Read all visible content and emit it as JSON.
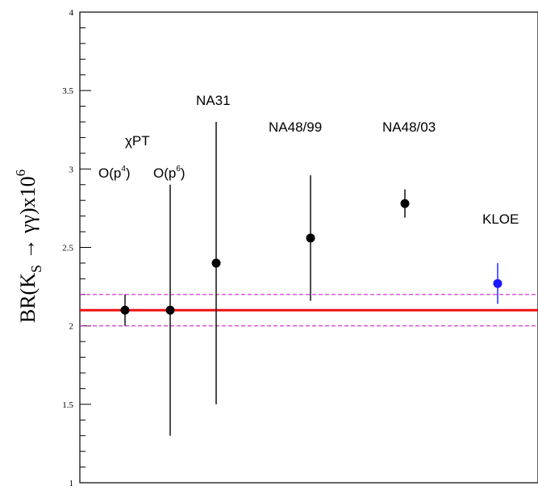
{
  "chart_data": {
    "type": "scatter",
    "title": "",
    "ylabel": "BR(K_S → γγ)x10^6",
    "ylim": [
      1,
      4
    ],
    "yticks": [
      1,
      1.5,
      2,
      2.5,
      3,
      3.5,
      4
    ],
    "ytick_labels": [
      "1",
      "1.5",
      "2",
      "2.5",
      "3",
      "3.5",
      "4"
    ],
    "grid": false,
    "points": [
      {
        "label": "O(p⁴)",
        "y": 2.1,
        "err_low": 2.0,
        "err_high": 2.2,
        "color": "#000000"
      },
      {
        "label": "O(p⁶)",
        "y": 2.1,
        "err_low": 1.3,
        "err_high": 2.9,
        "color": "#000000"
      },
      {
        "label": "NA31",
        "y": 2.4,
        "err_low": 1.5,
        "err_high": 3.3,
        "color": "#000000"
      },
      {
        "label": "NA48/99",
        "y": 2.56,
        "err_low": 2.16,
        "err_high": 2.96,
        "color": "#000000"
      },
      {
        "label": "NA48/03",
        "y": 2.78,
        "err_low": 2.69,
        "err_high": 2.87,
        "color": "#000000"
      },
      {
        "label": "KLOE",
        "y": 2.27,
        "err_low": 2.14,
        "err_high": 2.4,
        "color": "#1a1aff"
      }
    ],
    "reference_line": {
      "y": 2.1,
      "color": "#ee1111"
    },
    "band_lines": [
      {
        "y": 2.2,
        "color": "#cc22cc"
      },
      {
        "y": 2.0,
        "color": "#cc22cc"
      }
    ],
    "annotations": {
      "chipt": "χPT",
      "op4": "O(p",
      "op4_sup": "4",
      "op6": "O(p",
      "op6_sup": "6",
      "close_paren": ")",
      "na31": "NA31",
      "na48_99": "NA48/99",
      "na48_03": "NA48/03",
      "kloe": "KLOE",
      "kloe_color": "#ee1111"
    },
    "ylabel_parts": {
      "br": "BR(K",
      "sub": "S",
      "arrow": " → γγ)x10",
      "sup": "6"
    }
  }
}
